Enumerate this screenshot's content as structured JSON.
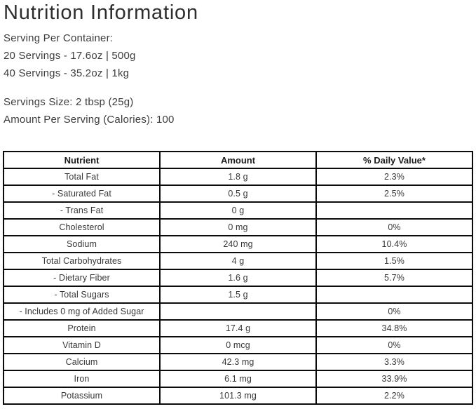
{
  "page": {
    "title": "Nutrition Information",
    "serving_per_container_label": "Serving Per Container:",
    "serving_line_1": "20 Servings - 17.6oz | 500g",
    "serving_line_2": "40 Servings - 35.2oz | 1kg",
    "serving_size": "Servings Size: 2 tbsp (25g)",
    "amount_per_serving": "Amount Per Serving (Calories): 100"
  },
  "colors": {
    "table_border": "#0a0a0a",
    "body_text": "#3c3c3c",
    "table_text": "#383838"
  },
  "table": {
    "columns": [
      "Nutrient",
      "Amount",
      "% Daily Value*"
    ],
    "rows": [
      {
        "nutrient": "Total Fat",
        "amount": "1.8 g",
        "daily_value": "2.3%"
      },
      {
        "nutrient": "- Saturated Fat",
        "amount": "0.5 g",
        "daily_value": "2.5%"
      },
      {
        "nutrient": "- Trans Fat",
        "amount": "0 g",
        "daily_value": ""
      },
      {
        "nutrient": "Cholesterol",
        "amount": "0 mg",
        "daily_value": "0%"
      },
      {
        "nutrient": "Sodium",
        "amount": "240 mg",
        "daily_value": "10.4%"
      },
      {
        "nutrient": "Total Carbohydrates",
        "amount": "4 g",
        "daily_value": "1.5%"
      },
      {
        "nutrient": "- Dietary Fiber",
        "amount": "1.6 g",
        "daily_value": "5.7%"
      },
      {
        "nutrient": "- Total Sugars",
        "amount": "1.5 g",
        "daily_value": ""
      },
      {
        "nutrient": "- Includes 0 mg of Added Sugar",
        "amount": "",
        "daily_value": "0%"
      },
      {
        "nutrient": "Protein",
        "amount": "17.4 g",
        "daily_value": "34.8%"
      },
      {
        "nutrient": "Vitamin D",
        "amount": "0 mcg",
        "daily_value": "0%"
      },
      {
        "nutrient": "Calcium",
        "amount": "42.3 mg",
        "daily_value": "3.3%"
      },
      {
        "nutrient": "Iron",
        "amount": "6.1 mg",
        "daily_value": "33.9%"
      },
      {
        "nutrient": "Potassium",
        "amount": "101.3 mg",
        "daily_value": "2.2%"
      }
    ]
  }
}
